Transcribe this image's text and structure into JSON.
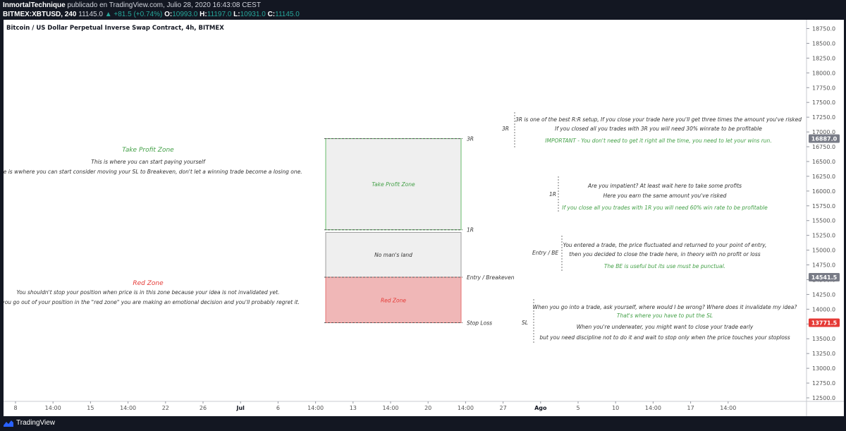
{
  "header": {
    "author": "InmortalTechnique",
    "published": "publicado en TradingView.com, Julio 28, 2020 16:43:08 CEST",
    "symbol": "BITMEX:XBTUSD, 240",
    "last": "11145.0",
    "change": "+81.5 (+0.74%)",
    "o_label": "O:",
    "o_value": "10993.0",
    "h_label": "H:",
    "h_value": "11197.0",
    "l_label": "L:",
    "l_value": "10931.0",
    "c_label": "C:",
    "c_value": "11145.0"
  },
  "footer": {
    "brand": "TradingView"
  },
  "chart_data": {
    "type": "annotated price chart (position risk/reward template)",
    "title": "Bitcoin / US Dollar Perpetual Inverse Swap Contract, 4h, BITMEX",
    "y_axis": {
      "position": "right",
      "min": 12500,
      "max": 18750,
      "step": 250,
      "format": "0.0"
    },
    "x_axis": {
      "ticks": [
        "8",
        "14:00",
        "15",
        "14:00",
        "22",
        "26",
        "Jul",
        "6",
        "14:00",
        "13",
        "14:00",
        "20",
        "14:00",
        "27",
        "Ago",
        "5",
        "10",
        "14:00",
        "17",
        "14:00"
      ],
      "bold_ticks": [
        "Jul",
        "Ago"
      ]
    },
    "price_badges": [
      {
        "value": 16887.0,
        "label": "16887.0",
        "color": "#787b86"
      },
      {
        "value": 14541.5,
        "label": "14541.5",
        "color": "#787b86"
      },
      {
        "value": 13771.5,
        "label": "13771.5",
        "color": "#e53935"
      }
    ],
    "levels": [
      {
        "name": "3R",
        "label": "3R",
        "price": 16887.0
      },
      {
        "name": "1R",
        "label": "1R",
        "price": 15345
      },
      {
        "name": "entry",
        "label": "Entry / Breakeven",
        "price": 14541.5
      },
      {
        "name": "stop",
        "label": "Stop Loss",
        "price": 13771.5
      }
    ],
    "zones": [
      {
        "name": "take-profit",
        "label": "Take Profit Zone",
        "from": 15345,
        "to": 16887.0,
        "fill": "#efefef",
        "border": "#66bb6a",
        "text_color": "#43a047"
      },
      {
        "name": "no-mans-land",
        "label": "No man's land",
        "from": 14541.5,
        "to": 15300,
        "fill": "#efefef",
        "border": "#9e9e9e",
        "text_color": "#333333"
      },
      {
        "name": "red",
        "label": "Red Zone",
        "from": 13771.5,
        "to": 14541.5,
        "fill": "#f0b7b7",
        "border": "#e57373",
        "text_color": "#e53935"
      }
    ],
    "left_notes": [
      {
        "name": "take-profit-note",
        "title": "Take Profit Zone",
        "title_color": "#43a047",
        "lines": [
          "This is where you can start paying yourself",
          "Here is wwhere you can start consider moving your SL to Breakeven, don't let a winning trade become a losing one."
        ]
      },
      {
        "name": "red-zone-note",
        "title": "Red Zone",
        "title_color": "#e53935",
        "lines": [
          "You shouldn't stop your position when price is in this zone because your idea is not invalidated yet.",
          "If you go out of your position in the \"red zone\" you are making an emotional decision and you'll probably regret it."
        ]
      }
    ],
    "right_notes": [
      {
        "name": "3r-note",
        "tag": "3R",
        "lines": [
          {
            "text": "3R is one of the best R:R setup, If you close your trade here you'll get three times the amount you've risked",
            "color": "#333333"
          },
          {
            "text": "If you closed all you trades with 3R you will need 30% winrate to be profitable",
            "color": "#333333"
          },
          {
            "text": "IMPORTANT -  You don't need to get it right all the time, you need to let your wins run.",
            "color": "#43a047"
          }
        ]
      },
      {
        "name": "1r-note",
        "tag": "1R",
        "lines": [
          {
            "text": "Are you impatient? At least wait here to take some profits",
            "color": "#333333"
          },
          {
            "text": "Here you earn the same amount you've risked",
            "color": "#333333"
          },
          {
            "text": "If you close all you trades with 1R you will need 60% win rate to be profitable",
            "color": "#43a047"
          }
        ]
      },
      {
        "name": "be-note",
        "tag": "Entry / BE",
        "lines": [
          {
            "text": "You entered a trade, the price fluctuated and returned to your point of entry,",
            "color": "#333333"
          },
          {
            "text": "then you decided to close the trade here, in theory with no profit or loss",
            "color": "#333333"
          },
          {
            "text": "The BE is useful but its use must be punctual.",
            "color": "#43a047"
          }
        ]
      },
      {
        "name": "sl-note",
        "tag": "SL",
        "lines": [
          {
            "text": "When you go into a trade, ask yourself, where would I be wrong? Where does it invalidate my idea?",
            "color": "#333333"
          },
          {
            "text": "That's where you have to put the SL",
            "color": "#43a047"
          },
          {
            "text": "When you're underwater, you might want to close your trade early",
            "color": "#333333"
          },
          {
            "text": "but you need discipline not to do it and wait to stop only when the price touches your stoploss",
            "color": "#333333"
          }
        ]
      }
    ]
  }
}
